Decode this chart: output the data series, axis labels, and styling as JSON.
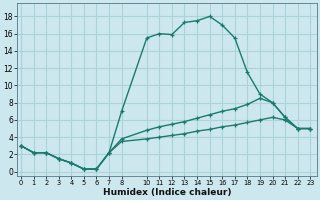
{
  "xlabel": "Humidex (Indice chaleur)",
  "bg_color": "#cce8ee",
  "grid_color": "#aad4da",
  "line_color": "#1a7a6e",
  "xlim": [
    -0.3,
    23.5
  ],
  "ylim": [
    -0.5,
    19.5
  ],
  "xticks": [
    0,
    1,
    2,
    3,
    4,
    5,
    6,
    7,
    8,
    10,
    11,
    12,
    13,
    14,
    15,
    16,
    17,
    18,
    19,
    20,
    21,
    22,
    23
  ],
  "yticks": [
    0,
    2,
    4,
    6,
    8,
    10,
    12,
    14,
    16,
    18
  ],
  "line1_x": [
    0,
    1,
    2,
    3,
    4,
    5,
    6,
    7,
    8,
    10,
    11,
    12,
    13,
    14,
    15,
    16,
    17,
    18,
    19,
    20,
    21,
    22,
    23
  ],
  "line1_y": [
    3,
    2.2,
    2.2,
    1.5,
    1.0,
    0.3,
    0.3,
    2.2,
    7.0,
    15.5,
    16.0,
    15.9,
    17.3,
    17.5,
    18.0,
    17.0,
    15.5,
    11.5,
    9.0,
    8.0,
    6.3,
    5.0,
    5.0
  ],
  "line2_x": [
    0,
    1,
    2,
    3,
    4,
    5,
    6,
    7,
    8,
    10,
    11,
    12,
    13,
    14,
    15,
    16,
    17,
    18,
    19,
    20,
    21,
    22,
    23
  ],
  "line2_y": [
    3.0,
    2.2,
    2.2,
    1.5,
    1.0,
    0.3,
    0.3,
    2.2,
    3.8,
    4.8,
    5.2,
    5.5,
    5.8,
    6.2,
    6.6,
    7.0,
    7.3,
    7.8,
    8.5,
    8.0,
    6.3,
    5.0,
    5.0
  ],
  "line3_x": [
    0,
    1,
    2,
    3,
    4,
    5,
    6,
    7,
    8,
    10,
    11,
    12,
    13,
    14,
    15,
    16,
    17,
    18,
    19,
    20,
    21,
    22,
    23
  ],
  "line3_y": [
    3.0,
    2.2,
    2.2,
    1.5,
    1.0,
    0.3,
    0.3,
    2.2,
    3.5,
    3.8,
    4.0,
    4.2,
    4.4,
    4.7,
    4.9,
    5.2,
    5.4,
    5.7,
    6.0,
    6.3,
    6.0,
    5.0,
    5.0
  ]
}
